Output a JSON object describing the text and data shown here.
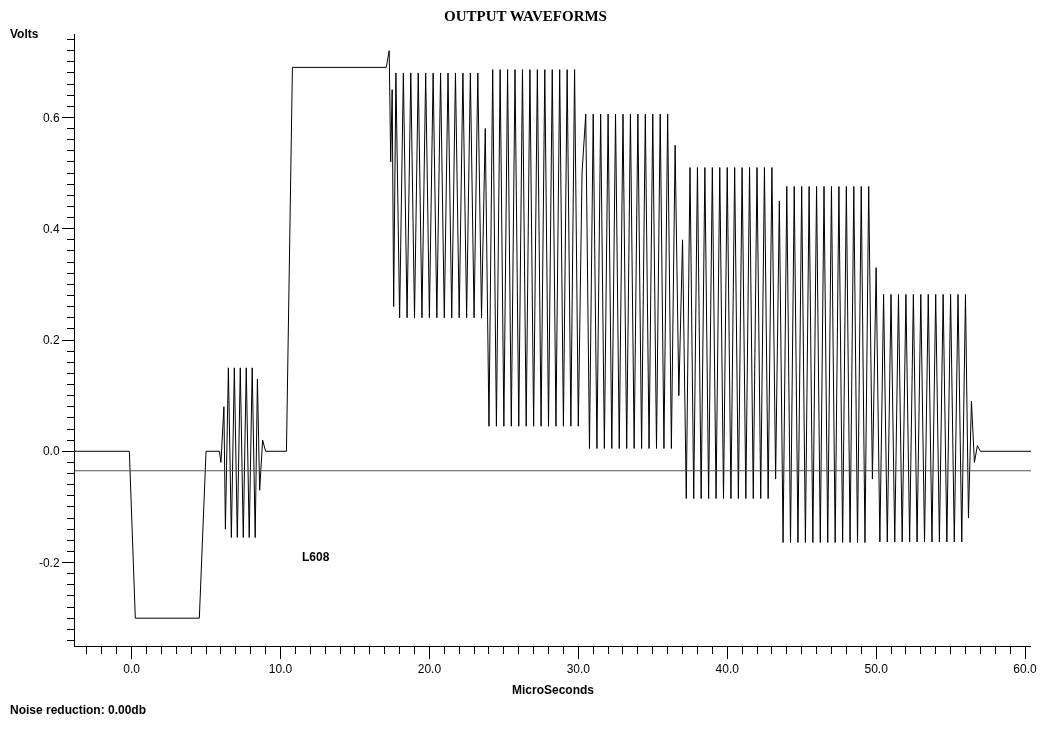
{
  "chart_data": {
    "type": "line",
    "title": "OUTPUT WAVEFORMS",
    "xlabel": "MicroSeconds",
    "ylabel": "Volts",
    "annotations": [
      "L608",
      "Noise reduction: 0.00db"
    ],
    "x": [
      -3.8,
      -0.15,
      0.25,
      4.55,
      5.0,
      5.9,
      6.0,
      6.2,
      6.3,
      6.5,
      6.7,
      6.9,
      7.1,
      7.3,
      7.5,
      7.7,
      7.9,
      8.1,
      8.3,
      8.45,
      8.6,
      8.8,
      9.0,
      10.4,
      10.8,
      17.1,
      17.3,
      17.4,
      17.5,
      17.6,
      17.75,
      18.0,
      18.25,
      18.5,
      18.75,
      19.0,
      19.25,
      19.5,
      19.75,
      20.0,
      20.25,
      20.5,
      20.75,
      21.0,
      21.25,
      21.5,
      21.75,
      22.0,
      22.25,
      22.5,
      22.75,
      23.0,
      23.25,
      23.5,
      23.75,
      24.0,
      24.25,
      24.5,
      24.75,
      25.0,
      25.25,
      25.5,
      25.75,
      26.0,
      26.25,
      26.5,
      26.75,
      27.0,
      27.25,
      27.5,
      27.75,
      28.0,
      28.25,
      28.5,
      28.75,
      29.0,
      29.25,
      29.5,
      29.75,
      30.0,
      30.25,
      30.5,
      30.75,
      31.0,
      31.25,
      31.5,
      31.75,
      32.0,
      32.25,
      32.5,
      32.75,
      33.0,
      33.25,
      33.5,
      33.75,
      34.0,
      34.25,
      34.5,
      34.75,
      35.0,
      35.25,
      35.5,
      35.75,
      36.0,
      36.25,
      36.5,
      36.75,
      37.0,
      37.25,
      37.5,
      37.75,
      38.0,
      38.25,
      38.5,
      38.75,
      39.0,
      39.25,
      39.5,
      39.75,
      40.0,
      40.25,
      40.5,
      40.75,
      41.0,
      41.25,
      41.5,
      41.75,
      42.0,
      42.25,
      42.5,
      42.75,
      43.0,
      43.25,
      43.5,
      43.75,
      44.0,
      44.25,
      44.5,
      44.75,
      45.0,
      45.25,
      45.5,
      45.75,
      46.0,
      46.25,
      46.5,
      46.75,
      47.0,
      47.25,
      47.5,
      47.75,
      48.0,
      48.25,
      48.5,
      48.75,
      49.0,
      49.25,
      49.5,
      49.75,
      50.0,
      50.25,
      50.5,
      50.75,
      51.0,
      51.25,
      51.5,
      51.75,
      52.0,
      52.25,
      52.5,
      52.75,
      53.0,
      53.25,
      53.5,
      53.75,
      54.0,
      54.25,
      54.5,
      54.75,
      55.0,
      55.25,
      55.5,
      55.75,
      56.0,
      56.2,
      56.4,
      56.6,
      56.8,
      57.0,
      60.4
    ],
    "values": [
      0,
      0,
      -0.3,
      -0.3,
      0,
      0,
      -0.02,
      0.08,
      -0.14,
      0.15,
      -0.155,
      0.15,
      -0.155,
      0.15,
      -0.155,
      0.15,
      -0.155,
      0.15,
      -0.155,
      0.13,
      -0.07,
      0.02,
      0,
      0,
      0.69,
      0.69,
      0.72,
      0.52,
      0.65,
      0.26,
      0.68,
      0.24,
      0.68,
      0.24,
      0.68,
      0.24,
      0.68,
      0.24,
      0.68,
      0.24,
      0.68,
      0.24,
      0.68,
      0.24,
      0.68,
      0.24,
      0.68,
      0.24,
      0.68,
      0.24,
      0.68,
      0.24,
      0.68,
      0.24,
      0.58,
      0.045,
      0.686,
      0.045,
      0.686,
      0.045,
      0.686,
      0.045,
      0.686,
      0.045,
      0.686,
      0.045,
      0.686,
      0.045,
      0.686,
      0.045,
      0.686,
      0.045,
      0.686,
      0.045,
      0.686,
      0.045,
      0.686,
      0.045,
      0.686,
      0.045,
      0.5,
      0.606,
      0.005,
      0.606,
      0.005,
      0.606,
      0.005,
      0.606,
      0.005,
      0.606,
      0.005,
      0.606,
      0.005,
      0.606,
      0.005,
      0.606,
      0.005,
      0.606,
      0.005,
      0.606,
      0.005,
      0.606,
      0.005,
      0.606,
      0.005,
      0.55,
      0.1,
      0.38,
      -0.085,
      0.51,
      -0.085,
      0.51,
      -0.085,
      0.51,
      -0.085,
      0.51,
      -0.085,
      0.51,
      -0.085,
      0.51,
      -0.085,
      0.51,
      -0.085,
      0.51,
      -0.085,
      0.51,
      -0.085,
      0.51,
      -0.085,
      0.51,
      -0.085,
      0.51,
      -0.05,
      0.45,
      -0.164,
      0.476,
      -0.164,
      0.476,
      -0.164,
      0.476,
      -0.164,
      0.476,
      -0.164,
      0.476,
      -0.164,
      0.476,
      -0.164,
      0.476,
      -0.164,
      0.476,
      -0.164,
      0.476,
      -0.164,
      0.476,
      -0.164,
      0.476,
      -0.164,
      0.476,
      -0.05,
      0.33,
      -0.163,
      0.282,
      -0.163,
      0.282,
      -0.163,
      0.282,
      -0.163,
      0.282,
      -0.163,
      0.282,
      -0.163,
      0.282,
      -0.163,
      0.282,
      -0.163,
      0.282,
      -0.163,
      0.282,
      -0.163,
      0.282,
      -0.163,
      0.282,
      -0.163,
      0.282,
      -0.12,
      0.09,
      -0.02,
      0.01,
      0,
      0
    ],
    "color": "#000000",
    "marker": "none",
    "line_style": "solid",
    "xlim": [
      -3.8,
      60.4
    ],
    "ylim": [
      -0.35,
      0.75
    ],
    "xticks": [
      {
        "value": 0,
        "label": "0.0"
      },
      {
        "value": 10,
        "label": "10.0"
      },
      {
        "value": 20,
        "label": "20.0"
      },
      {
        "value": 30,
        "label": "30.0"
      },
      {
        "value": 40,
        "label": "40.0"
      },
      {
        "value": 50,
        "label": "50.0"
      },
      {
        "value": 60,
        "label": "60.0"
      },
      {
        "value": -3,
        "label": null
      },
      {
        "value": -2,
        "label": null
      },
      {
        "value": -1,
        "label": null
      },
      {
        "value": 1,
        "label": null
      },
      {
        "value": 2,
        "label": null
      },
      {
        "value": 3,
        "label": null
      },
      {
        "value": 4,
        "label": null
      },
      {
        "value": 5,
        "label": null
      },
      {
        "value": 6,
        "label": null
      },
      {
        "value": 7,
        "label": null
      },
      {
        "value": 8,
        "label": null
      },
      {
        "value": 9,
        "label": null
      },
      {
        "value": 11,
        "label": null
      },
      {
        "value": 12,
        "label": null
      },
      {
        "value": 13,
        "label": null
      },
      {
        "value": 14,
        "label": null
      },
      {
        "value": 15,
        "label": null
      },
      {
        "value": 16,
        "label": null
      },
      {
        "value": 17,
        "label": null
      },
      {
        "value": 18,
        "label": null
      },
      {
        "value": 19,
        "label": null
      },
      {
        "value": 21,
        "label": null
      },
      {
        "value": 22,
        "label": null
      },
      {
        "value": 23,
        "label": null
      },
      {
        "value": 24,
        "label": null
      },
      {
        "value": 25,
        "label": null
      },
      {
        "value": 26,
        "label": null
      },
      {
        "value": 27,
        "label": null
      },
      {
        "value": 28,
        "label": null
      },
      {
        "value": 29,
        "label": null
      },
      {
        "value": 31,
        "label": null
      },
      {
        "value": 32,
        "label": null
      },
      {
        "value": 33,
        "label": null
      },
      {
        "value": 34,
        "label": null
      },
      {
        "value": 35,
        "label": null
      },
      {
        "value": 36,
        "label": null
      },
      {
        "value": 37,
        "label": null
      },
      {
        "value": 38,
        "label": null
      },
      {
        "value": 39,
        "label": null
      },
      {
        "value": 41,
        "label": null
      },
      {
        "value": 42,
        "label": null
      },
      {
        "value": 43,
        "label": null
      },
      {
        "value": 44,
        "label": null
      },
      {
        "value": 45,
        "label": null
      },
      {
        "value": 46,
        "label": null
      },
      {
        "value": 47,
        "label": null
      },
      {
        "value": 48,
        "label": null
      },
      {
        "value": 49,
        "label": null
      },
      {
        "value": 51,
        "label": null
      },
      {
        "value": 52,
        "label": null
      },
      {
        "value": 53,
        "label": null
      },
      {
        "value": 54,
        "label": null
      },
      {
        "value": 55,
        "label": null
      },
      {
        "value": 56,
        "label": null
      },
      {
        "value": 57,
        "label": null
      },
      {
        "value": 58,
        "label": null
      },
      {
        "value": 59,
        "label": null
      }
    ],
    "yticks": [
      {
        "value": -0.2,
        "label": "-0.2"
      },
      {
        "value": 0,
        "label": "0.0"
      },
      {
        "value": 0.2,
        "label": "0.2"
      },
      {
        "value": 0.4,
        "label": "0.4"
      },
      {
        "value": 0.6,
        "label": "0.6"
      },
      {
        "value": -0.34,
        "label": null
      },
      {
        "value": -0.32,
        "label": null
      },
      {
        "value": -0.3,
        "label": null
      },
      {
        "value": -0.28,
        "label": null
      },
      {
        "value": -0.26,
        "label": null
      },
      {
        "value": -0.24,
        "label": null
      },
      {
        "value": -0.22,
        "label": null
      },
      {
        "value": -0.18,
        "label": null
      },
      {
        "value": -0.16,
        "label": null
      },
      {
        "value": -0.14,
        "label": null
      },
      {
        "value": -0.12,
        "label": null
      },
      {
        "value": -0.1,
        "label": null
      },
      {
        "value": -0.08,
        "label": null
      },
      {
        "value": -0.06,
        "label": null
      },
      {
        "value": -0.04,
        "label": null
      },
      {
        "value": -0.02,
        "label": null
      },
      {
        "value": 0.02,
        "label": null
      },
      {
        "value": 0.04,
        "label": null
      },
      {
        "value": 0.06,
        "label": null
      },
      {
        "value": 0.08,
        "label": null
      },
      {
        "value": 0.1,
        "label": null
      },
      {
        "value": 0.12,
        "label": null
      },
      {
        "value": 0.14,
        "label": null
      },
      {
        "value": 0.16,
        "label": null
      },
      {
        "value": 0.18,
        "label": null
      },
      {
        "value": 0.22,
        "label": null
      },
      {
        "value": 0.24,
        "label": null
      },
      {
        "value": 0.26,
        "label": null
      },
      {
        "value": 0.28,
        "label": null
      },
      {
        "value": 0.3,
        "label": null
      },
      {
        "value": 0.32,
        "label": null
      },
      {
        "value": 0.34,
        "label": null
      },
      {
        "value": 0.36,
        "label": null
      },
      {
        "value": 0.38,
        "label": null
      },
      {
        "value": 0.42,
        "label": null
      },
      {
        "value": 0.44,
        "label": null
      },
      {
        "value": 0.46,
        "label": null
      },
      {
        "value": 0.48,
        "label": null
      },
      {
        "value": 0.5,
        "label": null
      },
      {
        "value": 0.52,
        "label": null
      },
      {
        "value": 0.54,
        "label": null
      },
      {
        "value": 0.56,
        "label": null
      },
      {
        "value": 0.58,
        "label": null
      },
      {
        "value": 0.62,
        "label": null
      },
      {
        "value": 0.64,
        "label": null
      },
      {
        "value": 0.66,
        "label": null
      },
      {
        "value": 0.68,
        "label": null
      },
      {
        "value": 0.7,
        "label": null
      },
      {
        "value": 0.72,
        "label": null
      },
      {
        "value": 0.74,
        "label": null
      }
    ],
    "ref_lines": [
      {
        "axis": "y",
        "value": -0.035,
        "color": "#555555"
      }
    ]
  }
}
